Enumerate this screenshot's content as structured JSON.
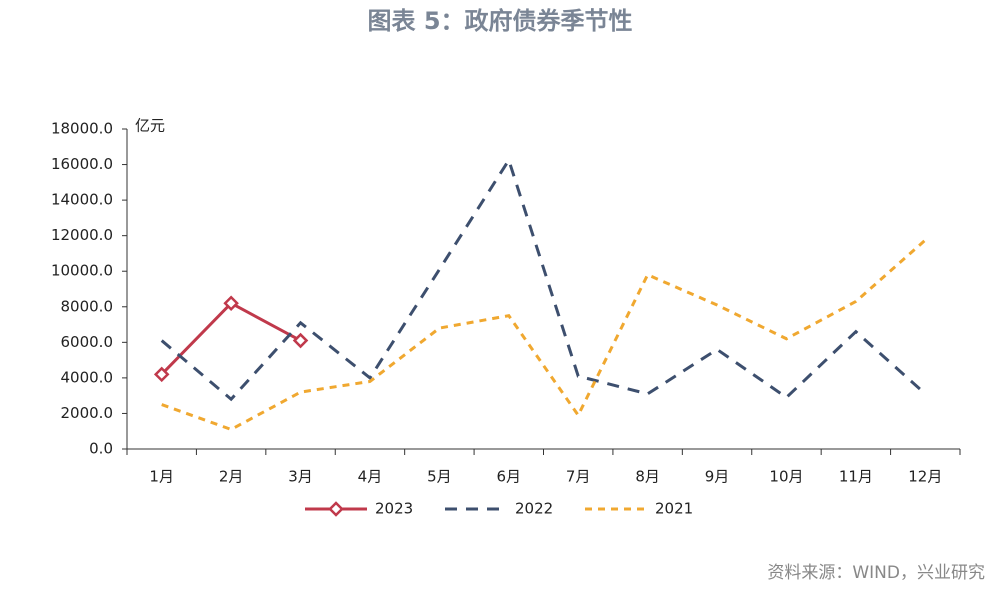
{
  "chart_data": {
    "type": "line",
    "title": "图表 5：政府债券季节性",
    "y_label": "亿元",
    "source": "资料来源：WIND，兴业研究",
    "categories": [
      "1月",
      "2月",
      "3月",
      "4月",
      "5月",
      "6月",
      "7月",
      "8月",
      "9月",
      "10月",
      "11月",
      "12月"
    ],
    "series": [
      {
        "name": "2023",
        "color": "#c0394b",
        "style": "solid",
        "marker": "diamond",
        "values": [
          4200,
          8200,
          6100,
          null,
          null,
          null,
          null,
          null,
          null,
          null,
          null,
          null
        ]
      },
      {
        "name": "2022",
        "color": "#3d4f6e",
        "style": "dashed",
        "values": [
          6100,
          2800,
          7100,
          4000,
          10100,
          16250,
          4100,
          3100,
          5600,
          2900,
          6600,
          3100
        ]
      },
      {
        "name": "2021",
        "color": "#f0a830",
        "style": "dotted",
        "values": [
          2500,
          1100,
          3200,
          3800,
          6800,
          7500,
          1900,
          9800,
          8100,
          6200,
          8300,
          11750
        ]
      }
    ],
    "ylim": [
      0,
      18000
    ],
    "yticks": [
      {
        "value": 0,
        "label": "0.0"
      },
      {
        "value": 2000,
        "label": "2000.0"
      },
      {
        "value": 4000,
        "label": "4000.0"
      },
      {
        "value": 6000,
        "label": "6000.0"
      },
      {
        "value": 8000,
        "label": "8000.0"
      },
      {
        "value": 10000,
        "label": "10000.0"
      },
      {
        "value": 12000,
        "label": "12000.0"
      },
      {
        "value": 14000,
        "label": "14000.0"
      },
      {
        "value": 16000,
        "label": "16000.0"
      },
      {
        "value": 18000,
        "label": "18000.0"
      }
    ],
    "legend": "bottom"
  }
}
